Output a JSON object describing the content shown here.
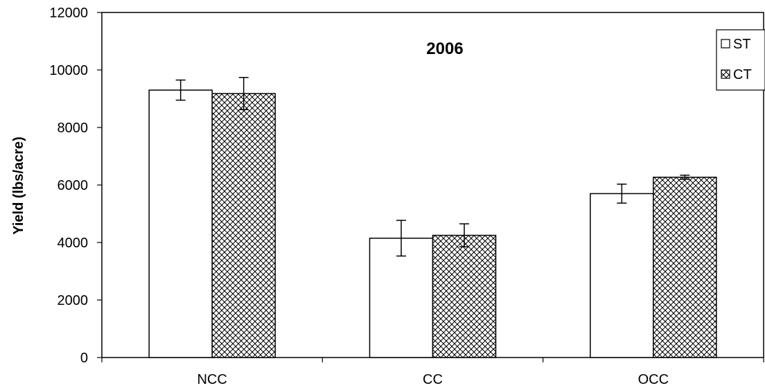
{
  "chart_data": {
    "type": "bar",
    "title": "2006",
    "xlabel": "",
    "ylabel": "Yield (lbs/acre)",
    "ylim": [
      0,
      12000
    ],
    "yticks": [
      0,
      2000,
      4000,
      6000,
      8000,
      10000,
      12000
    ],
    "categories": [
      "NCC",
      "CC",
      "OCC"
    ],
    "series": [
      {
        "name": "ST",
        "values": [
          9300,
          4150,
          5700
        ],
        "errors": [
          350,
          620,
          330
        ],
        "fill": "#ffffff",
        "pattern": "none"
      },
      {
        "name": "CT",
        "values": [
          9180,
          4250,
          6270
        ],
        "errors": [
          560,
          400,
          70
        ],
        "fill": "#ffffff",
        "pattern": "crosshatch-dots"
      }
    ],
    "legend": {
      "placement": "top-right"
    },
    "grid": false,
    "colors": {
      "axis": "#000000",
      "bar_edge": "#000000",
      "hatch": "#000000"
    }
  }
}
